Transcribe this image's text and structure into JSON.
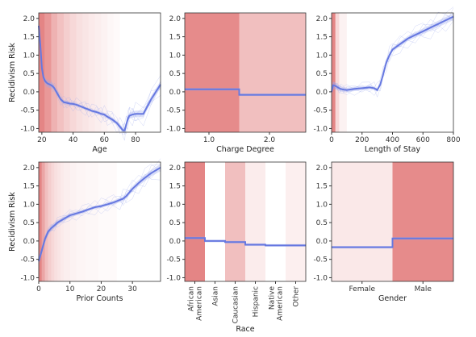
{
  "chart_data": [
    {
      "type": "line",
      "xlabel": "Age",
      "ylabel": "Recidivism Risk",
      "xlim": [
        18,
        96
      ],
      "ylim": [
        -1.1,
        2.15
      ],
      "xticks": [
        20,
        40,
        60,
        80
      ],
      "yticks": [
        -1.0,
        -0.5,
        0.0,
        0.5,
        1.0,
        1.5,
        2.0
      ],
      "x": [
        18,
        19,
        20,
        21,
        22,
        23,
        24,
        25,
        26,
        27,
        28,
        30,
        32,
        34,
        36,
        38,
        40,
        42,
        45,
        48,
        50,
        52,
        55,
        58,
        60,
        62,
        65,
        68,
        70,
        72,
        73,
        74,
        75,
        76,
        78,
        80,
        85,
        90,
        96
      ],
      "y": [
        1.8,
        1.3,
        0.65,
        0.4,
        0.3,
        0.25,
        0.22,
        0.2,
        0.18,
        0.15,
        0.1,
        -0.05,
        -0.2,
        -0.28,
        -0.3,
        -0.32,
        -0.33,
        -0.35,
        -0.4,
        -0.45,
        -0.48,
        -0.52,
        -0.55,
        -0.6,
        -0.62,
        -0.68,
        -0.75,
        -0.85,
        -0.95,
        -1.05,
        -1.05,
        -0.9,
        -0.75,
        -0.65,
        -0.62,
        -0.6,
        -0.6,
        -0.2,
        0.2
      ],
      "density_bins": [
        [
          18,
          22,
          0.95
        ],
        [
          22,
          26,
          0.8
        ],
        [
          26,
          30,
          0.6
        ],
        [
          30,
          34,
          0.48
        ],
        [
          34,
          38,
          0.38
        ],
        [
          38,
          42,
          0.3
        ],
        [
          42,
          46,
          0.24
        ],
        [
          46,
          50,
          0.2
        ],
        [
          50,
          54,
          0.16
        ],
        [
          54,
          58,
          0.13
        ],
        [
          58,
          62,
          0.1
        ],
        [
          62,
          66,
          0.06
        ],
        [
          66,
          70,
          0.04
        ]
      ]
    },
    {
      "type": "step",
      "xlabel": "Charge Degree",
      "ylabel": "",
      "xlim": [
        0.6,
        2.6
      ],
      "ylim": [
        -1.1,
        2.15
      ],
      "xticks": [
        1.0,
        2.0
      ],
      "tick_labels": [
        "1.0",
        "2.0"
      ],
      "categories": [
        "1.0",
        "2.0"
      ],
      "values": [
        0.07,
        -0.08
      ],
      "density": [
        0.9,
        0.5
      ]
    },
    {
      "type": "line",
      "xlabel": "Length of Stay",
      "ylabel": "",
      "xlim": [
        0,
        800
      ],
      "ylim": [
        -1.1,
        2.15
      ],
      "xticks": [
        0,
        200,
        400,
        600,
        800
      ],
      "yticks": [
        -1.0,
        -0.5,
        0.0,
        0.5,
        1.0,
        1.5,
        2.0
      ],
      "x": [
        0,
        10,
        20,
        30,
        40,
        50,
        60,
        80,
        100,
        150,
        200,
        250,
        280,
        300,
        320,
        340,
        360,
        380,
        400,
        450,
        500,
        550,
        600,
        650,
        700,
        750,
        800
      ],
      "y": [
        0.0,
        0.18,
        0.17,
        0.15,
        0.12,
        0.1,
        0.08,
        0.06,
        0.05,
        0.08,
        0.1,
        0.12,
        0.1,
        0.05,
        0.2,
        0.5,
        0.8,
        1.0,
        1.15,
        1.3,
        1.45,
        1.55,
        1.65,
        1.75,
        1.85,
        1.95,
        2.05
      ],
      "density_bins": [
        [
          0,
          25,
          0.95
        ],
        [
          25,
          50,
          0.3
        ],
        [
          50,
          100,
          0.1
        ]
      ]
    },
    {
      "type": "line",
      "xlabel": "Prior Counts",
      "ylabel": "Recidivism Risk",
      "xlim": [
        0,
        39
      ],
      "ylim": [
        -1.1,
        2.15
      ],
      "xticks": [
        0,
        10,
        20,
        30
      ],
      "yticks": [
        -1.0,
        -0.5,
        0.0,
        0.5,
        1.0,
        1.5,
        2.0
      ],
      "x": [
        0,
        1,
        2,
        3,
        4,
        5,
        6,
        8,
        10,
        12,
        14,
        16,
        18,
        20,
        22,
        24,
        26,
        27,
        28,
        30,
        32,
        34,
        36,
        39
      ],
      "y": [
        -0.55,
        -0.25,
        0.05,
        0.25,
        0.35,
        0.42,
        0.5,
        0.6,
        0.7,
        0.75,
        0.8,
        0.86,
        0.92,
        0.95,
        1.0,
        1.05,
        1.12,
        1.15,
        1.22,
        1.42,
        1.58,
        1.72,
        1.85,
        2.0
      ],
      "density_bins": [
        [
          0,
          1,
          0.95
        ],
        [
          1,
          2,
          0.7
        ],
        [
          2,
          3,
          0.5
        ],
        [
          3,
          4,
          0.38
        ],
        [
          4,
          5,
          0.3
        ],
        [
          5,
          6,
          0.24
        ],
        [
          6,
          7,
          0.2
        ],
        [
          7,
          8,
          0.16
        ],
        [
          8,
          10,
          0.13
        ],
        [
          10,
          12,
          0.1
        ],
        [
          12,
          15,
          0.08
        ],
        [
          15,
          19,
          0.06
        ],
        [
          19,
          25,
          0.04
        ]
      ]
    },
    {
      "type": "step",
      "xlabel": "Race",
      "ylabel": "",
      "ylim": [
        -1.1,
        2.15
      ],
      "categories": [
        "African American",
        "Asian",
        "Caucasian",
        "Hispanic",
        "Native American",
        "Other"
      ],
      "tick_labels": [
        "African\nAmerican",
        "Asian",
        "Caucasian",
        "Hispanic",
        "Native\nAmerican",
        "Other"
      ],
      "values": [
        0.08,
        0.0,
        -0.03,
        -0.1,
        -0.12,
        -0.12
      ],
      "density": [
        0.95,
        0.0,
        0.5,
        0.15,
        0.0,
        0.12
      ]
    },
    {
      "type": "step",
      "xlabel": "Gender",
      "ylabel": "",
      "ylim": [
        -1.1,
        2.15
      ],
      "categories": [
        "Female",
        "Male"
      ],
      "tick_labels": [
        "Female",
        "Male"
      ],
      "values": [
        -0.17,
        0.07
      ],
      "density": [
        0.18,
        0.9
      ]
    }
  ],
  "colors": {
    "line": "#6678e0",
    "band": "#9aa7ee",
    "density": "#e07070"
  }
}
